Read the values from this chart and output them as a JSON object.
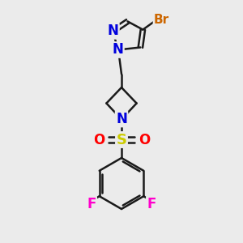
{
  "background_color": "#ebebeb",
  "bond_color": "#1a1a1a",
  "bond_width": 1.8,
  "atom_colors": {
    "N": "#0000dd",
    "Br": "#cc6600",
    "F": "#ff00cc",
    "S": "#cccc00",
    "O": "#ff0000",
    "C": "#1a1a1a"
  },
  "font_size": 11
}
